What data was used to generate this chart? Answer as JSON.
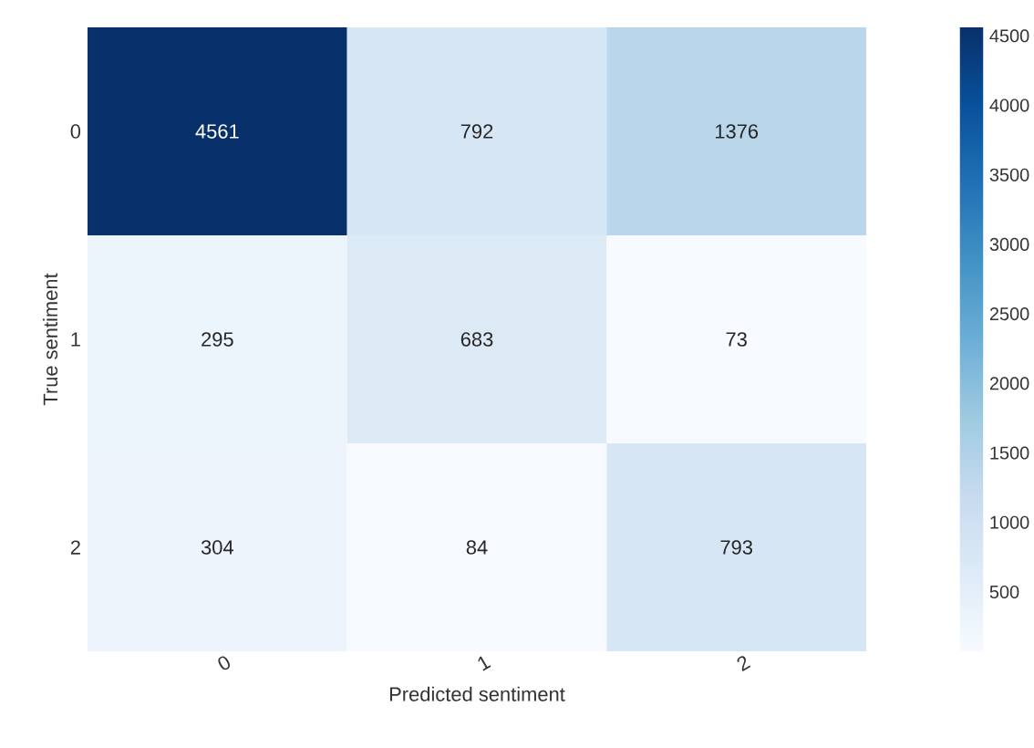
{
  "chart_data": {
    "type": "heatmap",
    "xlabel": "Predicted sentiment",
    "ylabel": "True sentiment",
    "categories": [
      "0",
      "1",
      "2"
    ],
    "y_categories": [
      "0",
      "1",
      "2"
    ],
    "cells": [
      [
        4561,
        792,
        1376
      ],
      [
        295,
        683,
        73
      ],
      [
        304,
        84,
        793
      ]
    ],
    "data_labels": true,
    "clim": [
      73,
      4561
    ],
    "cticks": [
      500,
      1000,
      1500,
      2000,
      2500,
      3000,
      3500,
      4000,
      4500
    ]
  }
}
